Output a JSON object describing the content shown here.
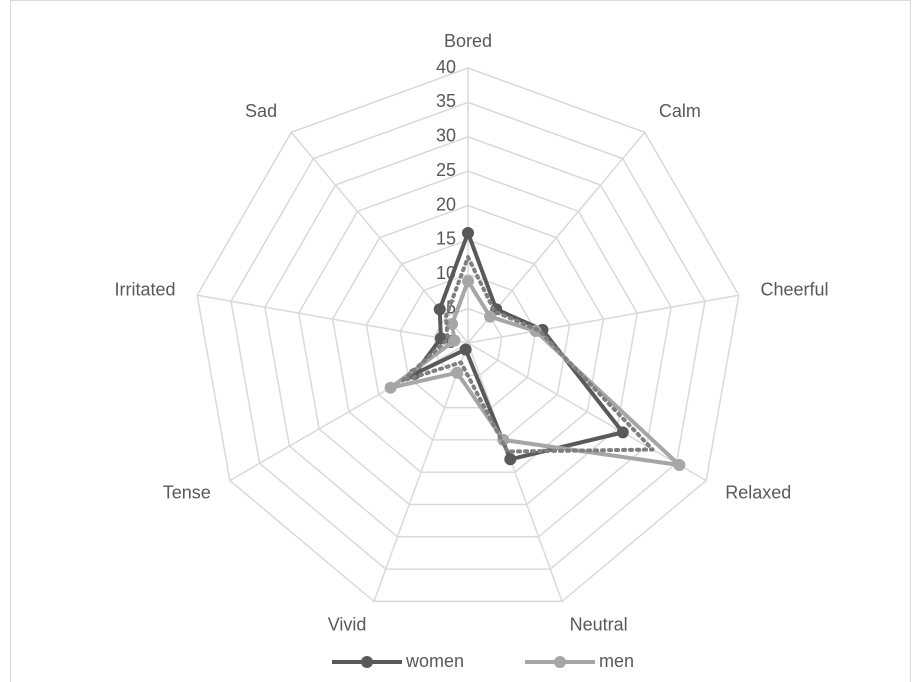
{
  "chart_data": {
    "type": "radar",
    "categories": [
      "Bored",
      "Calm",
      "Cheerful",
      "Relaxed",
      "Neutral",
      "Vivid",
      "Tense",
      "Irritated",
      "Sad"
    ],
    "series": [
      {
        "name": "women",
        "color": "#595959",
        "style": "solid",
        "values": [
          16,
          6.4,
          11,
          26,
          18,
          1,
          9,
          4,
          6.4
        ]
      },
      {
        "name": "men",
        "color": "#a6a6a6",
        "style": "solid",
        "values": [
          9,
          5,
          10,
          35.5,
          15,
          4.6,
          13,
          2,
          3.6
        ]
      },
      {
        "color": "#7f7f7f",
        "style": "dotted",
        "values": [
          12.5,
          6,
          10.5,
          31,
          16.8,
          3,
          11,
          3,
          5
        ]
      }
    ],
    "ylim": [
      0,
      40
    ],
    "yticks": [
      0,
      5,
      10,
      15,
      20,
      25,
      30,
      35,
      40
    ],
    "grid": true,
    "legend": "bottom"
  }
}
